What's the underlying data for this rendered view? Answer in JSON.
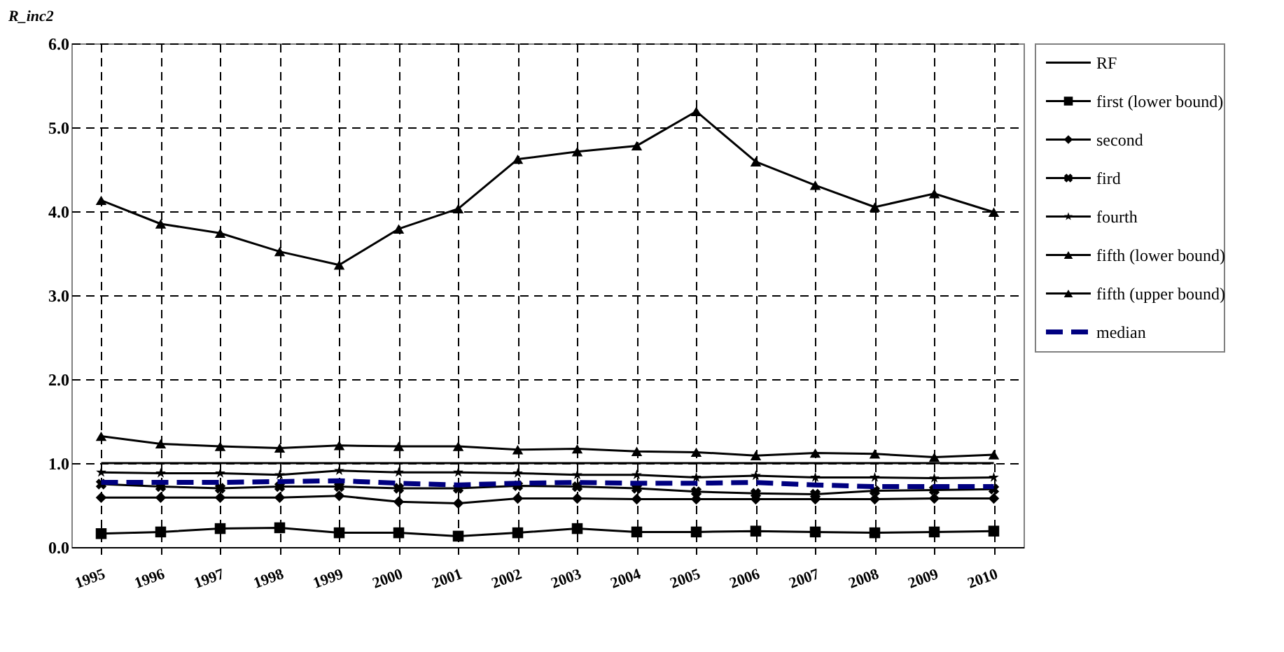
{
  "chart_data": {
    "type": "line",
    "ylabel": "R_inc2",
    "categories": [
      "1995",
      "1996",
      "1997",
      "1998",
      "1999",
      "2000",
      "2001",
      "2002",
      "2003",
      "2004",
      "2005",
      "2006",
      "2007",
      "2008",
      "2009",
      "2010"
    ],
    "ylim": [
      0,
      6
    ],
    "yticks": [
      {
        "value": 0,
        "label": "0.0"
      },
      {
        "value": 1,
        "label": "1.0"
      },
      {
        "value": 2,
        "label": "2.0"
      },
      {
        "value": 3,
        "label": "3.0"
      },
      {
        "value": 4,
        "label": "4.0"
      },
      {
        "value": 5,
        "label": "5.0"
      },
      {
        "value": 6,
        "label": "6.0"
      }
    ],
    "grid": true,
    "legend": "right",
    "series": [
      {
        "name": "RF",
        "color": "#000000",
        "marker": "none",
        "line_style": "solid",
        "values": [
          1.0,
          1.0,
          1.0,
          1.0,
          1.0,
          1.0,
          1.0,
          1.0,
          1.0,
          1.0,
          1.0,
          1.0,
          1.0,
          1.0,
          1.0,
          1.0
        ]
      },
      {
        "name": "first (lower bound)",
        "color": "#000000",
        "marker": "square",
        "line_style": "solid",
        "values": [
          0.16,
          0.18,
          0.22,
          0.23,
          0.17,
          0.17,
          0.13,
          0.17,
          0.22,
          0.18,
          0.18,
          0.19,
          0.18,
          0.17,
          0.18,
          0.19
        ]
      },
      {
        "name": "second",
        "color": "#000000",
        "marker": "diamond",
        "line_style": "solid",
        "values": [
          0.59,
          0.59,
          0.59,
          0.59,
          0.61,
          0.54,
          0.52,
          0.58,
          0.58,
          0.57,
          0.57,
          0.57,
          0.57,
          0.57,
          0.58,
          0.58
        ]
      },
      {
        "name": "fird",
        "color": "#000000",
        "marker": "cross",
        "line_style": "solid",
        "values": [
          0.75,
          0.72,
          0.7,
          0.72,
          0.72,
          0.7,
          0.7,
          0.73,
          0.72,
          0.7,
          0.66,
          0.64,
          0.63,
          0.67,
          0.68,
          0.69
        ]
      },
      {
        "name": "fourth",
        "color": "#000000",
        "marker": "star",
        "line_style": "solid",
        "values": [
          0.89,
          0.88,
          0.88,
          0.86,
          0.91,
          0.89,
          0.89,
          0.88,
          0.86,
          0.86,
          0.83,
          0.85,
          0.83,
          0.83,
          0.82,
          0.83
        ]
      },
      {
        "name": "fifth (lower bound)",
        "color": "#000000",
        "marker": "triangle",
        "line_style": "solid",
        "values": [
          1.32,
          1.23,
          1.2,
          1.18,
          1.21,
          1.2,
          1.2,
          1.16,
          1.17,
          1.14,
          1.13,
          1.09,
          1.12,
          1.11,
          1.07,
          1.1
        ]
      },
      {
        "name": "fifth (upper bound)",
        "color": "#000000",
        "marker": "triangle",
        "line_style": "solid",
        "values": [
          4.13,
          3.85,
          3.74,
          3.52,
          3.36,
          3.79,
          4.03,
          4.62,
          4.71,
          4.78,
          5.19,
          4.59,
          4.31,
          4.05,
          4.21,
          3.99
        ]
      },
      {
        "name": "median",
        "color": "#000080",
        "marker": "none",
        "line_style": "dashed",
        "values": [
          0.77,
          0.77,
          0.77,
          0.78,
          0.79,
          0.76,
          0.74,
          0.76,
          0.77,
          0.76,
          0.76,
          0.77,
          0.74,
          0.72,
          0.72,
          0.72
        ]
      }
    ]
  }
}
